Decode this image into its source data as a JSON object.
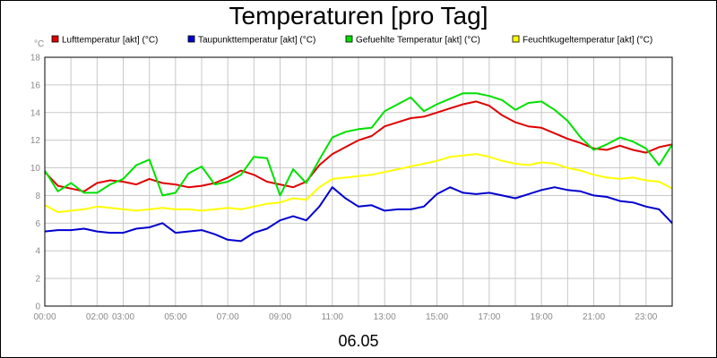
{
  "chart_data": {
    "type": "line",
    "title": "Temperaturen [pro Tag]",
    "date_label": "06.05",
    "ylabel": "°C",
    "ylim": [
      0,
      18
    ],
    "yticks": [
      0,
      2,
      4,
      6,
      8,
      10,
      12,
      14,
      16,
      18
    ],
    "xlim": [
      0,
      24
    ],
    "xticks": [
      {
        "value": 0,
        "label": "00:00"
      },
      {
        "value": 2,
        "label": "02:00"
      },
      {
        "value": 3,
        "label": "03:00"
      },
      {
        "value": 5,
        "label": "05:00"
      },
      {
        "value": 7,
        "label": "07:00"
      },
      {
        "value": 9,
        "label": "09:00"
      },
      {
        "value": 11,
        "label": "11:00"
      },
      {
        "value": 13,
        "label": "13:00"
      },
      {
        "value": 15,
        "label": "15:00"
      },
      {
        "value": 17,
        "label": "17:00"
      },
      {
        "value": 19,
        "label": "19:00"
      },
      {
        "value": 21,
        "label": "21:00"
      },
      {
        "value": 23,
        "label": "23:00"
      }
    ],
    "grid": true,
    "legend_position": "top",
    "x": [
      0,
      0.5,
      1,
      1.5,
      2,
      2.5,
      3,
      3.5,
      4,
      4.5,
      5,
      5.5,
      6,
      6.5,
      7,
      7.5,
      8,
      8.5,
      9,
      9.5,
      10,
      10.5,
      11,
      11.5,
      12,
      12.5,
      13,
      13.5,
      14,
      14.5,
      15,
      15.5,
      16,
      16.5,
      17,
      17.5,
      18,
      18.5,
      19,
      19.5,
      20,
      20.5,
      21,
      21.5,
      22,
      22.5,
      23,
      23.5,
      24
    ],
    "series": [
      {
        "name": "Lufttemperatur [akt] (°C)",
        "color": "#e00000",
        "values": [
          9.7,
          8.7,
          8.5,
          8.3,
          8.9,
          9.1,
          9.0,
          8.8,
          9.2,
          8.9,
          8.8,
          8.6,
          8.7,
          8.9,
          9.3,
          9.8,
          9.5,
          9.0,
          8.8,
          8.6,
          9.0,
          10.2,
          11.0,
          11.5,
          12.0,
          12.3,
          13.0,
          13.3,
          13.6,
          13.7,
          14.0,
          14.3,
          14.6,
          14.8,
          14.5,
          13.8,
          13.3,
          13.0,
          12.9,
          12.5,
          12.1,
          11.8,
          11.4,
          11.3,
          11.6,
          11.3,
          11.1,
          11.5,
          11.7
        ]
      },
      {
        "name": "Taupunkttemperatur [akt] (°C)",
        "color": "#0000d0",
        "values": [
          5.4,
          5.5,
          5.5,
          5.6,
          5.4,
          5.3,
          5.3,
          5.6,
          5.7,
          6.0,
          5.3,
          5.4,
          5.5,
          5.2,
          4.8,
          4.7,
          5.3,
          5.6,
          6.2,
          6.5,
          6.2,
          7.2,
          8.6,
          7.8,
          7.2,
          7.3,
          6.9,
          7.0,
          7.0,
          7.2,
          8.1,
          8.6,
          8.2,
          8.1,
          8.2,
          8.0,
          7.8,
          8.1,
          8.4,
          8.6,
          8.4,
          8.3,
          8.0,
          7.9,
          7.6,
          7.5,
          7.2,
          7.0,
          6.0
        ]
      },
      {
        "name": "Gefuehlte Temperatur [akt] (°C)",
        "color": "#00e000",
        "values": [
          9.8,
          8.3,
          8.9,
          8.2,
          8.2,
          8.8,
          9.2,
          10.2,
          10.6,
          8.0,
          8.2,
          9.6,
          10.1,
          8.8,
          9.0,
          9.5,
          10.8,
          10.7,
          8.0,
          9.9,
          8.9,
          10.6,
          12.2,
          12.6,
          12.8,
          12.9,
          14.1,
          14.6,
          15.1,
          14.1,
          14.6,
          15.0,
          15.4,
          15.4,
          15.2,
          14.9,
          14.2,
          14.7,
          14.8,
          14.2,
          13.4,
          12.2,
          11.3,
          11.7,
          12.2,
          11.9,
          11.4,
          10.2,
          11.7
        ]
      },
      {
        "name": "Feuchtkugeltemperatur [akt] (°C)",
        "color": "#ffff00",
        "values": [
          7.3,
          6.8,
          6.9,
          7.0,
          7.2,
          7.1,
          7.0,
          6.9,
          7.0,
          7.1,
          7.0,
          7.0,
          6.9,
          7.0,
          7.1,
          7.0,
          7.2,
          7.4,
          7.5,
          7.8,
          7.7,
          8.6,
          9.2,
          9.3,
          9.4,
          9.5,
          9.7,
          9.9,
          10.1,
          10.3,
          10.5,
          10.8,
          10.9,
          11.0,
          10.8,
          10.5,
          10.3,
          10.2,
          10.4,
          10.3,
          10.0,
          9.8,
          9.5,
          9.3,
          9.2,
          9.3,
          9.1,
          9.0,
          8.5
        ]
      }
    ]
  }
}
